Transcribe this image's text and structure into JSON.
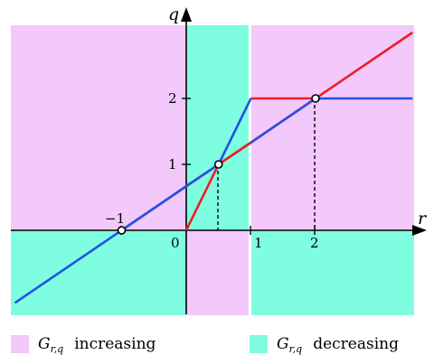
{
  "colors": {
    "increasing": "#f3c8fb",
    "decreasing": "#7ffde0",
    "red": "#ec1e25",
    "blue": "#2152e6",
    "axis": "#000000"
  },
  "axes": {
    "x_name": "r",
    "y_name": "q"
  },
  "ticks": {
    "x_neg1": "−1",
    "zero": "0",
    "x_1": "1",
    "x_2": "2",
    "y_1": "1",
    "y_2": "2"
  },
  "legend": {
    "increasing": {
      "symbol": "G",
      "subscript": "r,q",
      "word": "increasing",
      "color": "#f3c8fb"
    },
    "decreasing": {
      "symbol": "G",
      "subscript": "r,q",
      "word": "decreasing",
      "color": "#7ffde0"
    }
  },
  "curves": {
    "red": [
      {
        "points": [
          [
            -1,
            0
          ],
          [
            3.5,
            3
          ]
        ]
      },
      {
        "points": [
          [
            0,
            0
          ],
          [
            0.5,
            1
          ],
          [
            1,
            1.33
          ]
        ]
      },
      {
        "points": [
          [
            1,
            2
          ],
          [
            2,
            2
          ]
        ]
      }
    ],
    "blue": [
      {
        "points": [
          [
            -2.65,
            -1.1
          ],
          [
            -1,
            0
          ],
          [
            0,
            0.67
          ],
          [
            0.5,
            1
          ],
          [
            1,
            2
          ]
        ]
      },
      {
        "points": [
          [
            1,
            1.33
          ],
          [
            2,
            2
          ],
          [
            3.5,
            2
          ]
        ]
      }
    ]
  },
  "marked_points": [
    [
      -1,
      0
    ],
    [
      0.5,
      1
    ],
    [
      2,
      2
    ]
  ]
}
